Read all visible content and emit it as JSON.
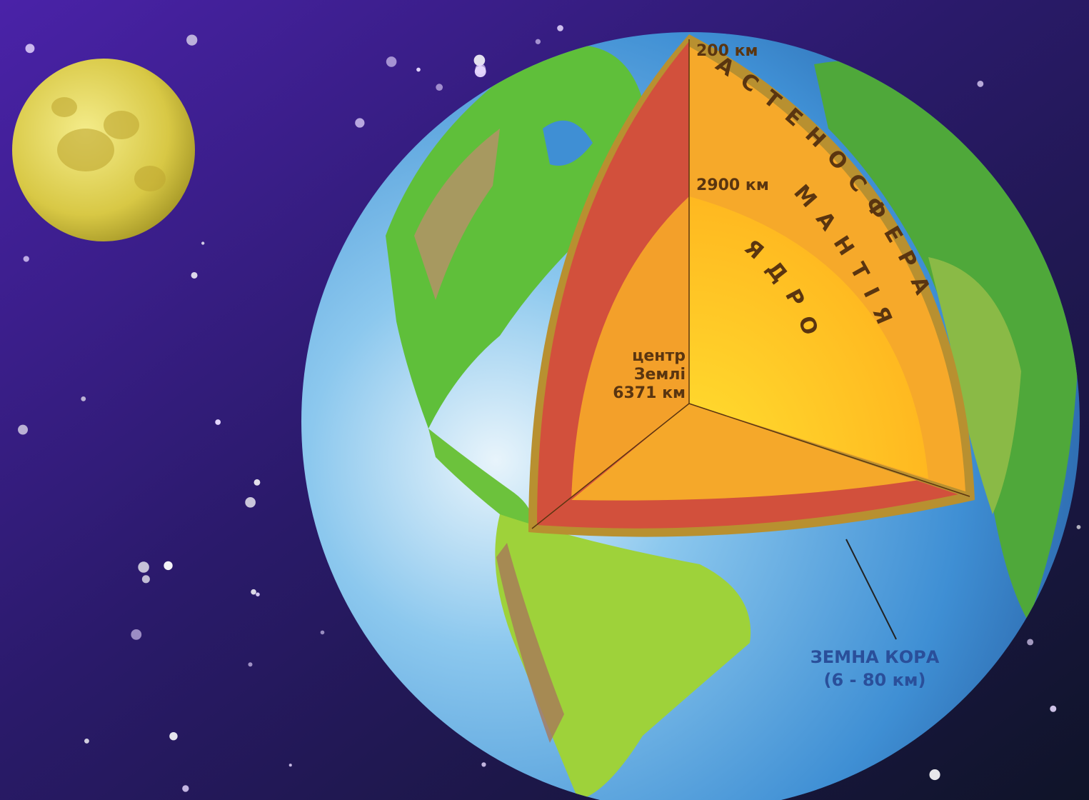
{
  "labels": {
    "asthenosphere_depth": "200 км",
    "asthenosphere": "АСТЕНОСФЕРА",
    "mantle_depth": "2900 км",
    "mantle": "МАНТІЯ",
    "core": "ЯДРО",
    "center": [
      "центр",
      "Землі",
      "6371 км"
    ],
    "crust": "ЗЕМНА КОРА",
    "crust_thickness": "(6 - 80 км)"
  }
}
